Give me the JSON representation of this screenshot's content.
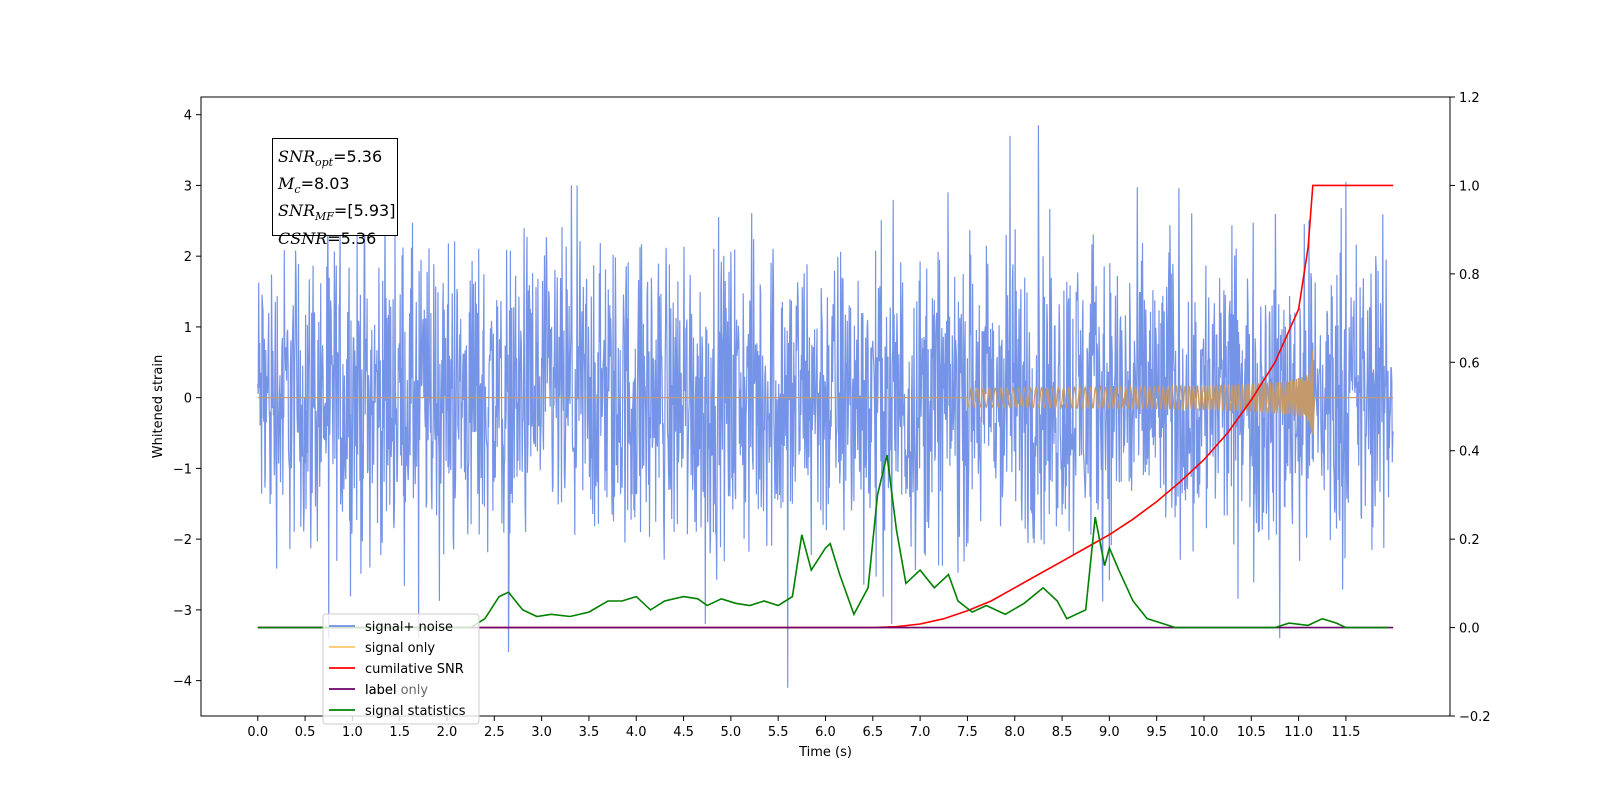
{
  "chart_data": {
    "type": "line",
    "xlabel": "Time (s)",
    "ylabel": "Whitened strain",
    "xlim": [
      -0.6,
      12.6
    ],
    "ylim": [
      -4.5,
      4.25
    ],
    "y2lim": [
      -0.2,
      1.2
    ],
    "x_ticks": [
      "0.0",
      "0.5",
      "1.0",
      "1.5",
      "2.0",
      "2.5",
      "3.0",
      "3.5",
      "4.0",
      "4.5",
      "5.0",
      "5.5",
      "6.0",
      "6.5",
      "7.0",
      "7.5",
      "8.0",
      "8.5",
      "9.0",
      "9.5",
      "10.0",
      "10.5",
      "11.0",
      "11.5"
    ],
    "y_ticks": [
      "4",
      "3",
      "2",
      "1",
      "0",
      "−1",
      "−2",
      "−3",
      "−4"
    ],
    "y2_ticks": [
      "1.2",
      "1.0",
      "0.8",
      "0.6",
      "0.4",
      "0.2",
      "0.0",
      "−0.2"
    ],
    "info_box": {
      "snr_opt_label": "SNR",
      "snr_opt_sub": "opt",
      "snr_opt_value": "=5.36",
      "mc_label": "M",
      "mc_sub": "c",
      "mc_value": "=8.03",
      "snr_mf_label": "SNR",
      "snr_mf_sub": "MF",
      "snr_mf_value": "=[5.93]",
      "csnr_label": "CSNR",
      "csnr_value": "=5.36"
    },
    "legend": [
      {
        "name": "signal+ noise",
        "color": "#6f8ee6"
      },
      {
        "name": "signal only",
        "color": "#ffc46e"
      },
      {
        "name": "cumilative SNR",
        "color": "#ff0000"
      },
      {
        "name": "label",
        "color": "#6a006a"
      },
      {
        "name": "signal statistics",
        "color": "#008000"
      }
    ],
    "hidden_legend_text": "label only",
    "series": [
      {
        "name": "signal+ noise",
        "axis": "left",
        "style": "noise",
        "x_range": [
          0.0,
          12.0
        ],
        "amplitude_typical": 2.6,
        "spikes": [
          [
            0.75,
            -3.4
          ],
          [
            1.7,
            -3.4
          ],
          [
            2.65,
            -3.6
          ],
          [
            4.73,
            -3.2
          ],
          [
            5.6,
            -4.1
          ],
          [
            6.7,
            -3.2
          ],
          [
            10.8,
            -3.4
          ],
          [
            8.25,
            3.85
          ],
          [
            7.95,
            3.7
          ],
          [
            11.5,
            3.05
          ]
        ]
      },
      {
        "name": "signal only",
        "axis": "left",
        "style": "chirp",
        "start": 7.5,
        "merger": 11.15,
        "end": 12.0,
        "peak_amplitude": 0.68,
        "trough_amplitude": -0.58
      },
      {
        "name": "cumilative SNR",
        "axis": "right",
        "x": [
          0,
          6.5,
          6.75,
          7.0,
          7.25,
          7.5,
          7.75,
          8.0,
          8.25,
          8.5,
          8.75,
          9.0,
          9.25,
          9.5,
          9.75,
          10.0,
          10.25,
          10.5,
          10.75,
          11.0,
          11.1,
          11.15,
          12.0
        ],
        "y": [
          0,
          0,
          0.002,
          0.008,
          0.02,
          0.038,
          0.06,
          0.09,
          0.12,
          0.15,
          0.18,
          0.21,
          0.245,
          0.285,
          0.33,
          0.38,
          0.44,
          0.515,
          0.6,
          0.72,
          0.86,
          1.0,
          1.0
        ]
      },
      {
        "name": "label",
        "axis": "right",
        "x": [
          0,
          12.0
        ],
        "y": [
          0,
          0
        ]
      },
      {
        "name": "signal statistics",
        "axis": "right",
        "x": [
          0,
          2.25,
          2.4,
          2.55,
          2.65,
          2.8,
          2.95,
          3.1,
          3.3,
          3.5,
          3.7,
          3.85,
          4.0,
          4.15,
          4.3,
          4.5,
          4.65,
          4.75,
          4.9,
          5.05,
          5.2,
          5.35,
          5.5,
          5.65,
          5.75,
          5.85,
          6.0,
          6.05,
          6.15,
          6.3,
          6.45,
          6.55,
          6.65,
          6.75,
          6.85,
          7.0,
          7.15,
          7.3,
          7.4,
          7.55,
          7.7,
          7.9,
          8.1,
          8.3,
          8.45,
          8.55,
          8.75,
          8.85,
          8.95,
          9.0,
          9.1,
          9.25,
          9.4,
          9.55,
          9.7,
          10.0,
          10.5,
          10.75,
          10.9,
          11.1,
          11.25,
          11.4,
          11.5,
          11.95
        ],
        "y": [
          0,
          0,
          0.02,
          0.07,
          0.08,
          0.04,
          0.025,
          0.03,
          0.025,
          0.035,
          0.06,
          0.06,
          0.07,
          0.04,
          0.06,
          0.07,
          0.065,
          0.05,
          0.065,
          0.055,
          0.05,
          0.06,
          0.05,
          0.07,
          0.21,
          0.13,
          0.18,
          0.19,
          0.12,
          0.03,
          0.09,
          0.3,
          0.39,
          0.22,
          0.1,
          0.13,
          0.09,
          0.12,
          0.06,
          0.035,
          0.05,
          0.03,
          0.055,
          0.09,
          0.06,
          0.02,
          0.04,
          0.25,
          0.14,
          0.18,
          0.13,
          0.06,
          0.02,
          0.01,
          0,
          0,
          0,
          0,
          0.01,
          0.005,
          0.02,
          0.01,
          0,
          0
        ]
      }
    ]
  }
}
